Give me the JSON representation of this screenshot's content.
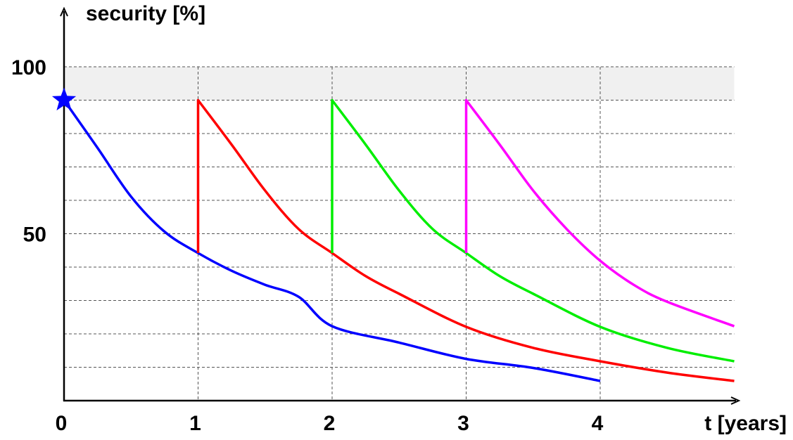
{
  "chart_data": {
    "type": "line",
    "title": "",
    "ylabel": "security [%]",
    "xlabel": "t [years]",
    "x_ticks": [
      {
        "value": 0,
        "label": "0"
      },
      {
        "value": 1,
        "label": "1"
      },
      {
        "value": 2,
        "label": "2"
      },
      {
        "value": 3,
        "label": "3"
      },
      {
        "value": 4,
        "label": "4"
      }
    ],
    "y_ticks": [
      {
        "value": 50,
        "label": "50"
      },
      {
        "value": 100,
        "label": "100"
      }
    ],
    "xlim": [
      0,
      5
    ],
    "ylim": [
      0,
      110
    ],
    "grid": true,
    "grid_y_values": [
      10,
      20,
      30,
      40,
      50,
      60,
      70,
      80,
      90,
      100
    ],
    "grid_x_values": [
      1,
      2,
      3,
      4
    ],
    "shaded_band": {
      "y_from": 90,
      "y_to": 100,
      "color": "#f0f0f0"
    },
    "start_marker": {
      "x": 0,
      "y": 90,
      "shape": "star",
      "color": "#0000ff"
    },
    "series": [
      {
        "color": "#0000ff",
        "points": [
          [
            0,
            90
          ],
          [
            0.25,
            75.7
          ],
          [
            0.5,
            61.1
          ],
          [
            0.75,
            50.6
          ],
          [
            1,
            44.2
          ],
          [
            1.25,
            38.9
          ],
          [
            1.5,
            34.7
          ],
          [
            1.75,
            31.1
          ],
          [
            2,
            22.3
          ],
          [
            2.5,
            17.4
          ],
          [
            3,
            12.5
          ],
          [
            3.5,
            9.8
          ],
          [
            4,
            5.9
          ]
        ]
      },
      {
        "color": "#ff0000",
        "points": [
          [
            1,
            44.2
          ],
          [
            1,
            90
          ],
          [
            1.25,
            76.7
          ],
          [
            1.5,
            62.9
          ],
          [
            1.75,
            51.4
          ],
          [
            2,
            44.2
          ],
          [
            2.25,
            37.3
          ],
          [
            2.5,
            32
          ],
          [
            3,
            22.1
          ],
          [
            3.5,
            15.8
          ],
          [
            4,
            11.8
          ],
          [
            4.5,
            8.4
          ],
          [
            5,
            5.9
          ]
        ]
      },
      {
        "color": "#00ee00",
        "points": [
          [
            2,
            44.2
          ],
          [
            2,
            90
          ],
          [
            2.25,
            76.7
          ],
          [
            2.5,
            62.9
          ],
          [
            2.75,
            51.4
          ],
          [
            3,
            44.2
          ],
          [
            3.25,
            37.3
          ],
          [
            3.5,
            32
          ],
          [
            4,
            22.1
          ],
          [
            4.5,
            15.8
          ],
          [
            5,
            11.8
          ]
        ]
      },
      {
        "color": "#ff00ff",
        "points": [
          [
            3,
            44.2
          ],
          [
            3,
            90
          ],
          [
            3.25,
            76.7
          ],
          [
            3.5,
            62.9
          ],
          [
            3.75,
            51.4
          ],
          [
            4,
            41.9
          ],
          [
            4.25,
            34.7
          ],
          [
            4.5,
            29.6
          ],
          [
            5,
            22.3
          ]
        ]
      }
    ]
  }
}
